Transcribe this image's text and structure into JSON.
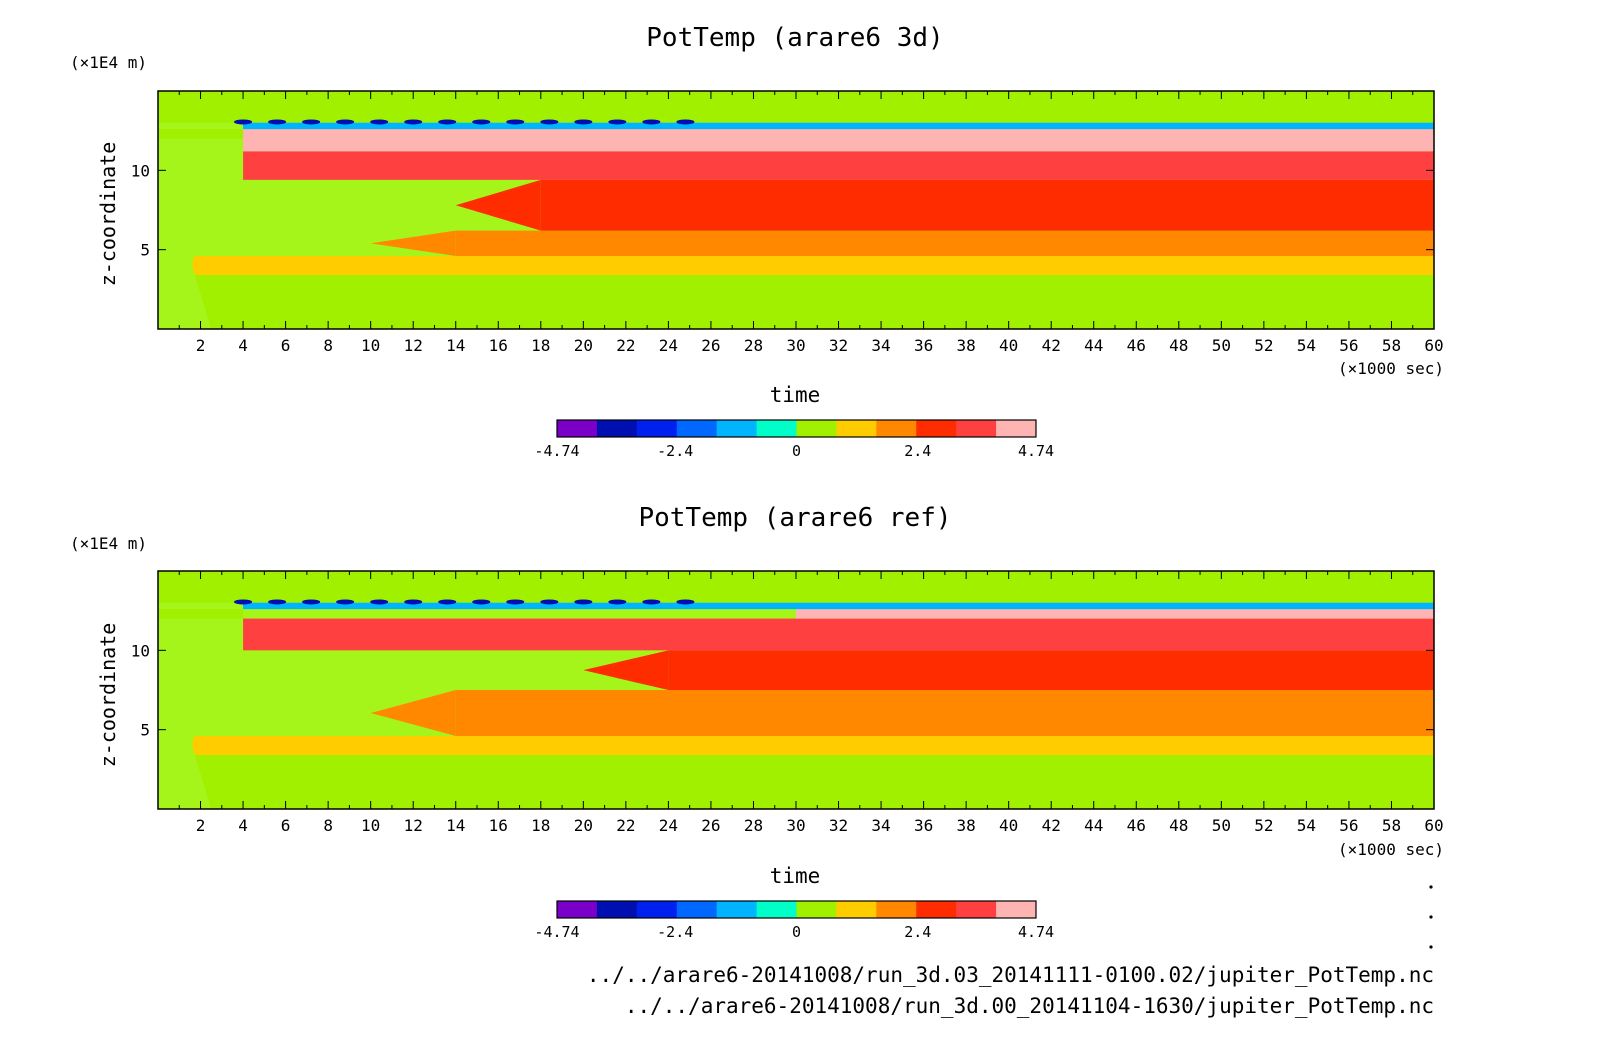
{
  "chart_data": [
    {
      "type": "heatmap",
      "title": "PotTemp (arare6 3d)",
      "xlabel": "time",
      "x_unit": "(×1000 sec)",
      "ylabel": "z-coordinate",
      "y_unit": "(×1E4 m)",
      "xlim": [
        0,
        60
      ],
      "ylim": [
        0,
        15
      ],
      "x_ticks": [
        2,
        4,
        6,
        8,
        10,
        12,
        14,
        16,
        18,
        20,
        22,
        24,
        26,
        28,
        30,
        32,
        34,
        36,
        38,
        40,
        42,
        44,
        46,
        48,
        50,
        52,
        54,
        56,
        58,
        60
      ],
      "y_ticks": [
        5,
        10
      ],
      "colorbar": {
        "min": -4.74,
        "max": 4.74,
        "tick_labels": [
          "-4.74",
          "-2.4",
          "0",
          "2.4",
          "4.74"
        ],
        "tick_values": [
          -4.74,
          -2.4,
          0,
          2.4,
          4.74
        ]
      },
      "bands": [
        {
          "name": "bottom",
          "level": 0,
          "x": [
            0,
            60
          ],
          "y": [
            0,
            3.4
          ]
        },
        {
          "name": "lower-green",
          "level": 1,
          "x": [
            0,
            60
          ],
          "y": [
            3.4,
            4.6
          ]
        },
        {
          "name": "yellow",
          "level": 2,
          "x": [
            14,
            60
          ],
          "y": [
            4.6,
            6.2
          ]
        },
        {
          "name": "orange",
          "level": 3,
          "x": [
            18,
            60
          ],
          "y": [
            6.2,
            9.4
          ]
        },
        {
          "name": "red-orange",
          "level": 4,
          "x": [
            4,
            60
          ],
          "y": [
            9.4,
            11.2
          ]
        },
        {
          "name": "red",
          "level": 5,
          "x": [
            4,
            60
          ],
          "y": [
            11.2,
            12.6
          ]
        },
        {
          "name": "tropopause",
          "level": -2,
          "x": [
            4,
            60
          ],
          "y": [
            12.6,
            13.0
          ]
        },
        {
          "name": "top",
          "level": 0,
          "x": [
            0,
            60
          ],
          "y": [
            13.0,
            15
          ]
        }
      ]
    },
    {
      "type": "heatmap",
      "title": "PotTemp (arare6 ref)",
      "xlabel": "time",
      "x_unit": "(×1000 sec)",
      "ylabel": "z-coordinate",
      "y_unit": "(×1E4 m)",
      "xlim": [
        0,
        60
      ],
      "ylim": [
        0,
        15
      ],
      "x_ticks": [
        2,
        4,
        6,
        8,
        10,
        12,
        14,
        16,
        18,
        20,
        22,
        24,
        26,
        28,
        30,
        32,
        34,
        36,
        38,
        40,
        42,
        44,
        46,
        48,
        50,
        52,
        54,
        56,
        58,
        60
      ],
      "y_ticks": [
        5,
        10
      ],
      "colorbar": {
        "min": -4.74,
        "max": 4.74,
        "tick_labels": [
          "-4.74",
          "-2.4",
          "0",
          "2.4",
          "4.74"
        ],
        "tick_values": [
          -4.74,
          -2.4,
          0,
          2.4,
          4.74
        ]
      },
      "bands": [
        {
          "name": "bottom",
          "level": 0,
          "x": [
            0,
            60
          ],
          "y": [
            0,
            3.4
          ]
        },
        {
          "name": "lower-green",
          "level": 1,
          "x": [
            0,
            60
          ],
          "y": [
            3.4,
            4.6
          ]
        },
        {
          "name": "yellow",
          "level": 2,
          "x": [
            14,
            60
          ],
          "y": [
            4.6,
            7.5
          ]
        },
        {
          "name": "orange",
          "level": 3,
          "x": [
            24,
            60
          ],
          "y": [
            7.5,
            10.0
          ]
        },
        {
          "name": "red",
          "level": 4,
          "x": [
            4,
            60
          ],
          "y": [
            10.0,
            12.0
          ]
        },
        {
          "name": "pink",
          "level": 5,
          "x": [
            30,
            60
          ],
          "y": [
            12.0,
            12.6
          ]
        },
        {
          "name": "tropopause",
          "level": -2,
          "x": [
            4,
            60
          ],
          "y": [
            12.6,
            13.0
          ]
        },
        {
          "name": "top",
          "level": 0,
          "x": [
            0,
            60
          ],
          "y": [
            13.0,
            15
          ]
        }
      ]
    }
  ],
  "colors": {
    "levels": [
      "#7a00c8",
      "#0010b0",
      "#0020f0",
      "#0068ff",
      "#00b4ff",
      "#00ffc8",
      "#a0f000",
      "#ffcc00",
      "#ff8800",
      "#ff2c00",
      "#ff4040",
      "#ffb4b4"
    ],
    "level_index_offset": 6,
    "green": "#a6f51a"
  },
  "footer": {
    "lines": [
      "../../arare6-20141008/run_3d.03_20141111-0100.02/jupiter_PotTemp.nc",
      "../../arare6-20141008/run_3d.00_20141104-1630/jupiter_PotTemp.nc"
    ]
  }
}
